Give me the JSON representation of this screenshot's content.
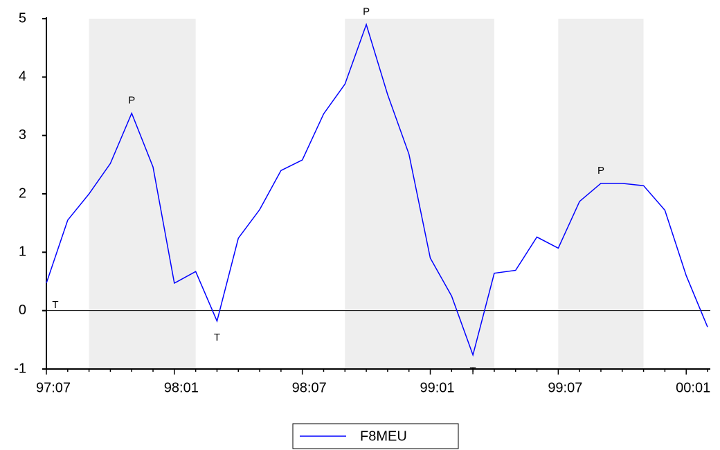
{
  "chart_data": {
    "type": "line",
    "categories": [
      "97:07",
      null,
      null,
      null,
      null,
      null,
      "98:01",
      null,
      null,
      null,
      null,
      null,
      "98:07",
      null,
      null,
      null,
      null,
      null,
      "99:01",
      null,
      null,
      null,
      null,
      null,
      "99:07",
      null,
      null,
      null,
      null,
      null,
      "00:01",
      null
    ],
    "series": [
      {
        "name": "F8MEU",
        "color": "#0000ff",
        "values": [
          0.47,
          1.55,
          2.0,
          2.52,
          3.38,
          2.46,
          0.47,
          0.67,
          -0.18,
          1.24,
          1.73,
          2.4,
          2.58,
          3.37,
          3.88,
          4.9,
          3.7,
          2.68,
          0.9,
          0.25,
          -0.76,
          0.64,
          0.69,
          1.26,
          1.07,
          1.87,
          2.18,
          2.18,
          2.14,
          1.72,
          0.6,
          -0.28
        ]
      }
    ],
    "shaded": [
      [
        2,
        7
      ],
      [
        14,
        21
      ],
      [
        24,
        28
      ]
    ],
    "annotations": [
      {
        "text": "T",
        "index": 0
      },
      {
        "text": "P",
        "index": 4
      },
      {
        "text": "T",
        "index": 8
      },
      {
        "text": "P",
        "index": 15
      },
      {
        "text": "T",
        "index": 20
      },
      {
        "text": "P",
        "index": 26
      }
    ],
    "ylim": [
      -1,
      5
    ],
    "yticks": [
      -1,
      0,
      1,
      2,
      3,
      4,
      5
    ],
    "grid": false,
    "legend": "bottom"
  }
}
